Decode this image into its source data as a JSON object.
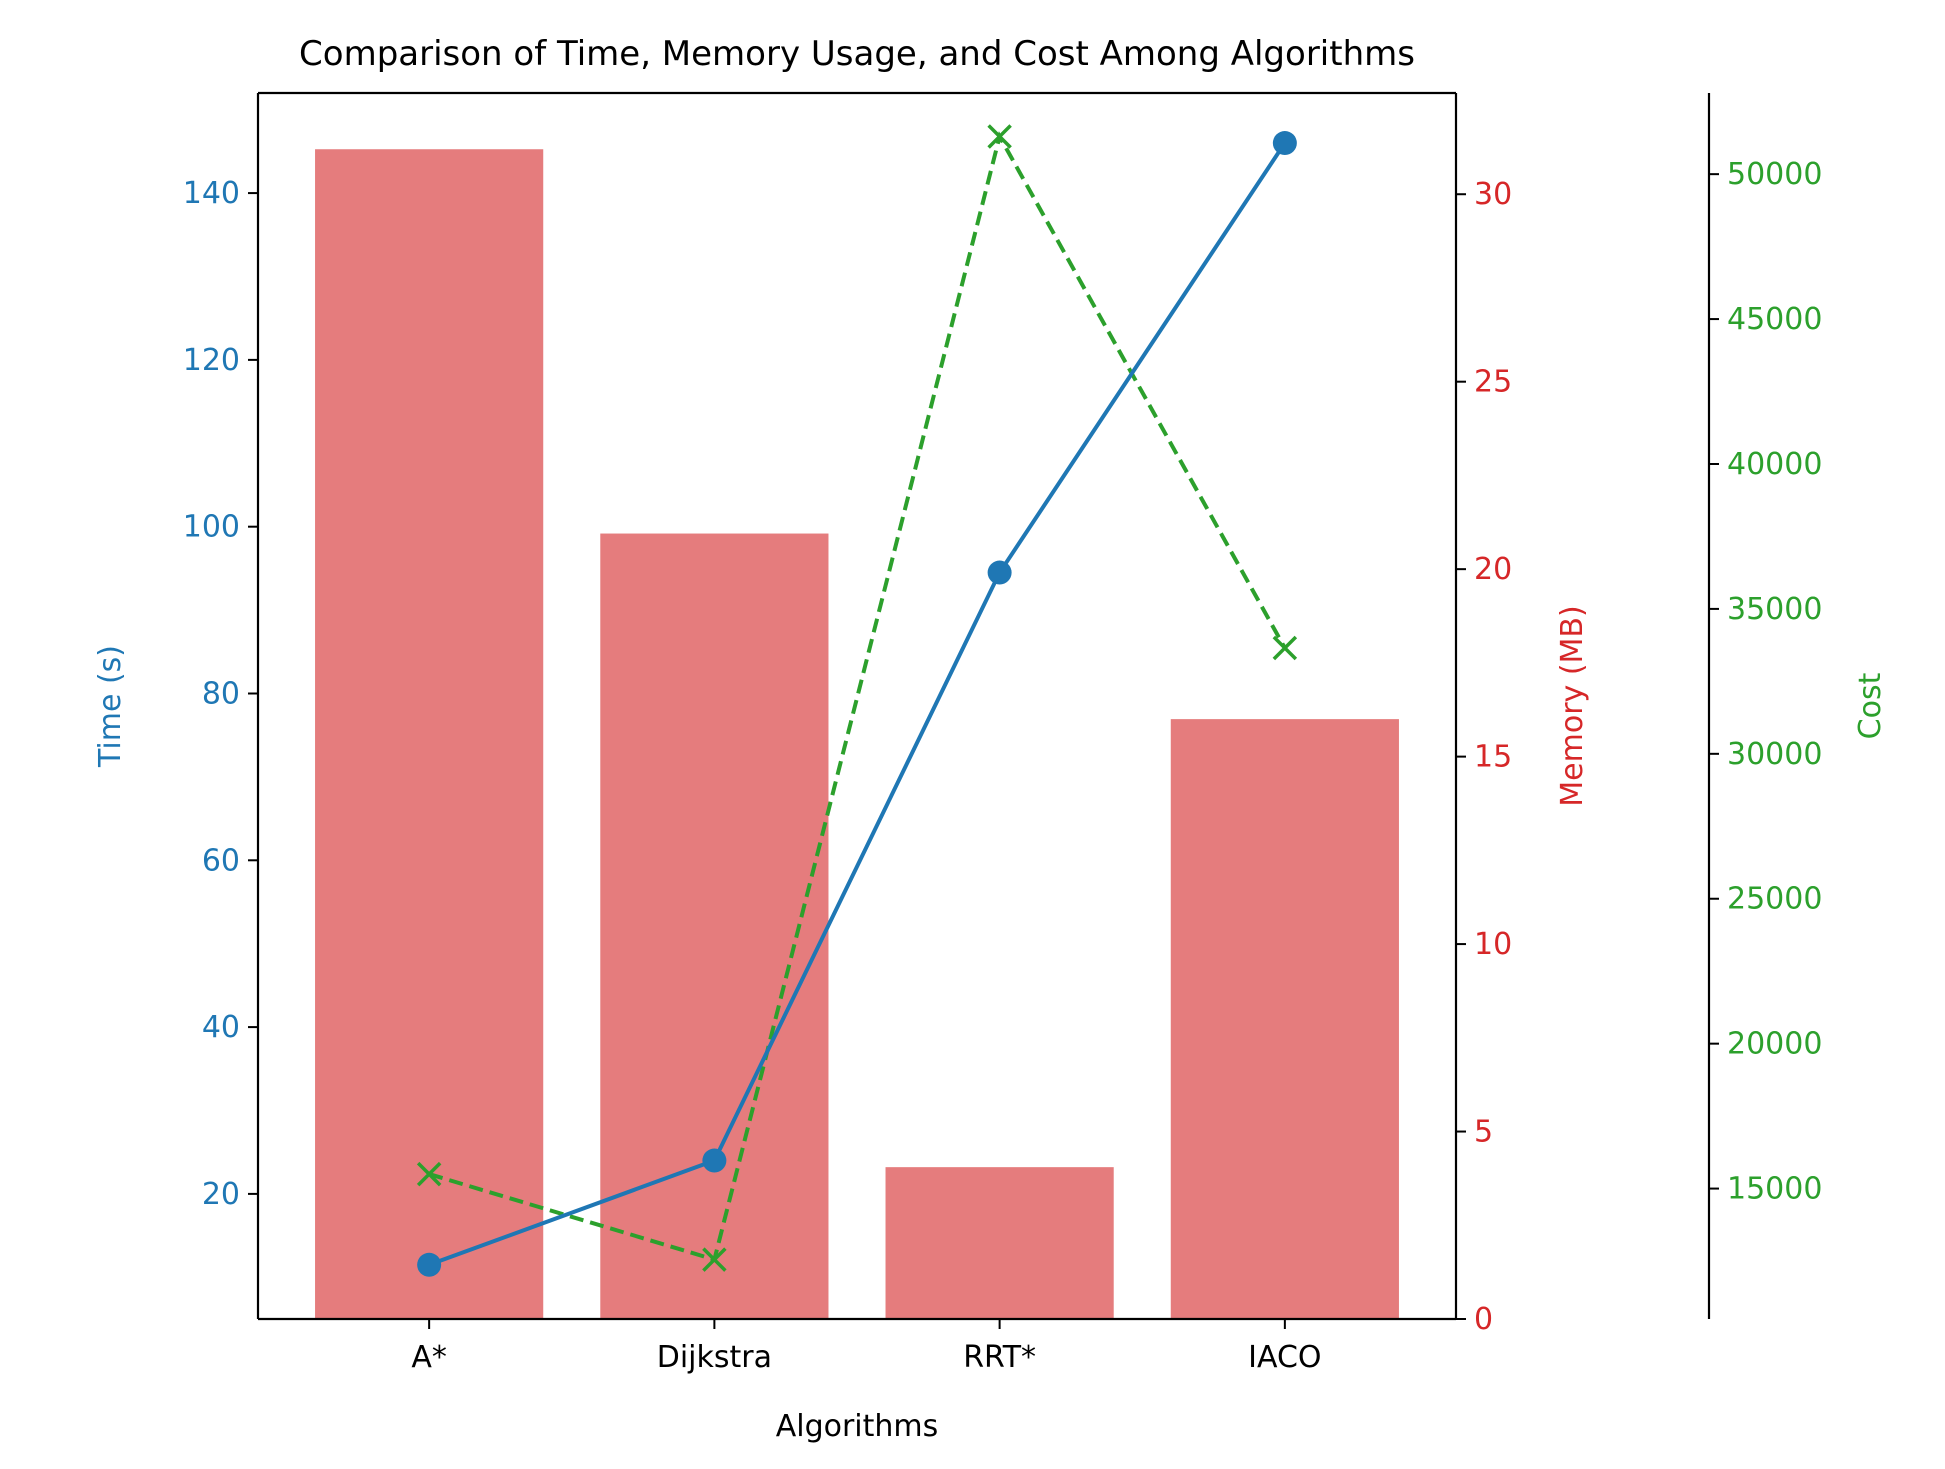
{
  "chart_data": {
    "type": "bar",
    "title": "Comparison of Time, Memory Usage, and Cost Among Algorithms",
    "xlabel": "Algorithms",
    "categories": [
      "A*",
      "Dijkstra",
      "RRT*",
      "IACO"
    ],
    "axes": {
      "time": {
        "label": "Time (s)",
        "color": "#1f77b4",
        "ylim": [
          5,
          152
        ],
        "ticks": [
          20,
          40,
          60,
          80,
          100,
          120,
          140
        ]
      },
      "memory": {
        "label": "Memory (MB)",
        "color": "#d62728",
        "ylim": [
          0,
          32.7
        ],
        "ticks": [
          0,
          5,
          10,
          15,
          20,
          25,
          30
        ]
      },
      "cost": {
        "label": "Cost",
        "color": "#2ca02c",
        "ylim": [
          10500,
          52800
        ],
        "ticks": [
          15000,
          20000,
          25000,
          30000,
          35000,
          40000,
          45000,
          50000
        ]
      }
    },
    "series": [
      {
        "kind": "bar",
        "axis": "memory",
        "color": "#e57c7d",
        "values": [
          31.2,
          20.95,
          4.05,
          16.0
        ]
      },
      {
        "kind": "line",
        "axis": "time",
        "color": "#1f77b4",
        "marker": "circle",
        "values": [
          11.5,
          24.0,
          94.5,
          146.0
        ]
      },
      {
        "kind": "line",
        "axis": "cost",
        "color": "#2ca02c",
        "marker": "x",
        "dashed": true,
        "values": [
          15500,
          12550,
          51300,
          33650
        ]
      }
    ]
  }
}
